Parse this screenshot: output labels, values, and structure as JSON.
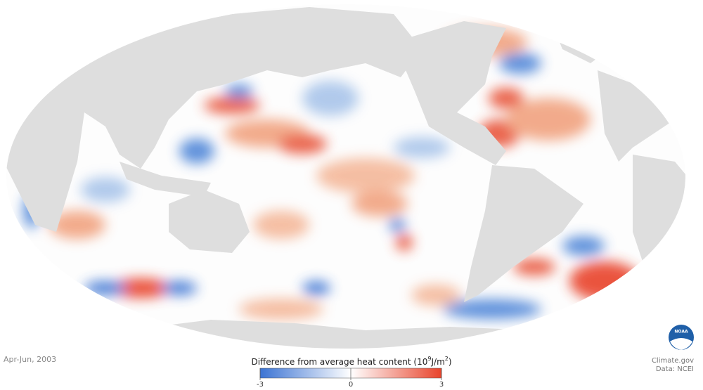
{
  "date": "Apr-Jun, 2003",
  "legend": {
    "title": [
      "Difference from average heat content (10",
      "9",
      "J/m",
      "2",
      ")"
    ],
    "lim": [
      -3,
      3
    ],
    "ticks": [
      -3,
      0,
      3
    ],
    "colors": [
      "#3b73d3",
      "#ffffff",
      "#e8432b"
    ]
  },
  "logo": "NOAA",
  "credit": "Climate.gov",
  "source": "Data: NCEI"
}
